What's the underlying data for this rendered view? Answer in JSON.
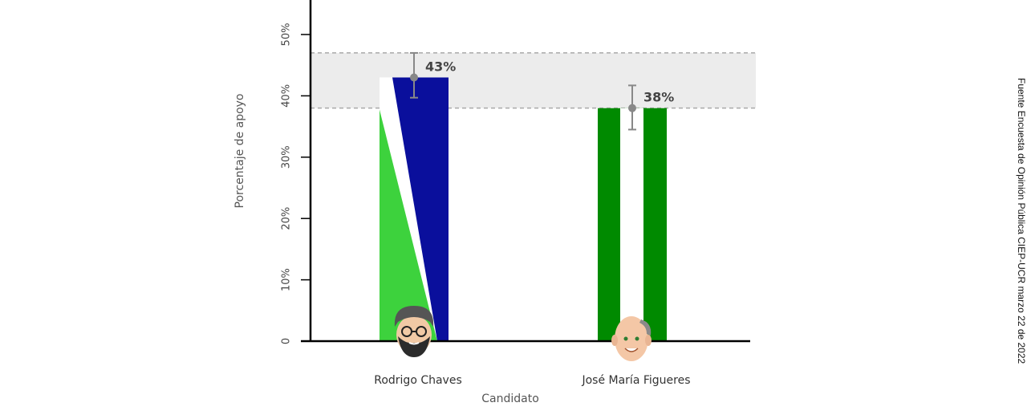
{
  "chart_data": {
    "type": "bar",
    "categories": [
      "Rodrigo Chaves",
      "José María Figueres"
    ],
    "values": [
      43,
      38
    ],
    "value_labels": [
      "43%",
      "38%"
    ],
    "error_bars": [
      {
        "low": 39.7,
        "high": 47.0
      },
      {
        "low": 34.5,
        "high": 41.7
      }
    ],
    "confidence_band": [
      38,
      47
    ],
    "xlabel": "Candidato",
    "ylabel": "Porcentaje de apoyo",
    "ylim": [
      0,
      55
    ],
    "yticks": [
      0,
      10,
      20,
      30,
      40,
      50
    ],
    "ytick_labels": [
      "0",
      "10%",
      "20%",
      "30%",
      "40%",
      "50%"
    ],
    "grid": false,
    "bar_styles": [
      "diagonal-green-white-blue",
      "vertical-green-white-green"
    ],
    "avatar_icons": [
      "man-with-glasses-and-beard-avatar-icon",
      "bald-man-avatar-icon"
    ],
    "colors": {
      "light_green": "#3dd23d",
      "dark_blue": "#0a0f9c",
      "dark_green": "#008a00",
      "band": "#ececec",
      "band_line": "#a8a8a8",
      "error_bar": "#888888"
    }
  },
  "source_note": "Fuente Encuesta de Opinión Pública CIEP-UCR marzo 22 de 2022"
}
